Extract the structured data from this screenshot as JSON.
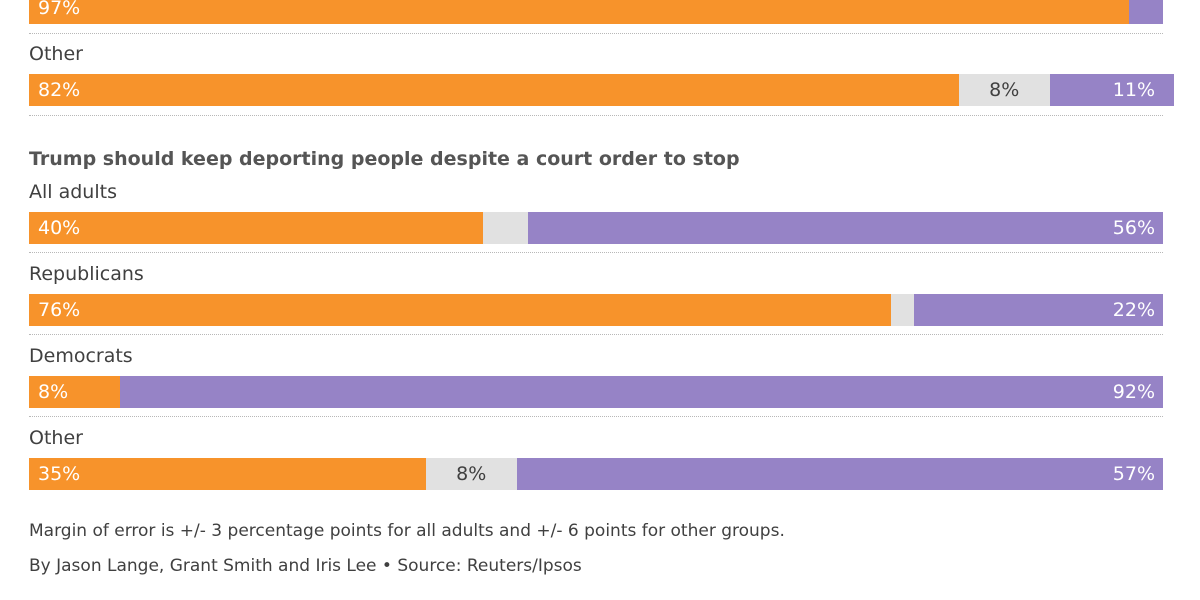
{
  "colors": {
    "yes": "#f7932b",
    "unsure": "#e1e1e1",
    "no": "#9683c6"
  },
  "chart_data": [
    {
      "type": "bar",
      "orientation": "horizontal",
      "stacked": "100%",
      "title": "",
      "categories": [
        "",
        "Other"
      ],
      "series": [
        {
          "values": [
            97,
            82
          ]
        },
        {
          "values": [
            null,
            8
          ]
        },
        {
          "values": [
            null,
            11
          ]
        }
      ],
      "labels": [
        [
          "97%",
          "",
          ""
        ],
        [
          "82%",
          "8%",
          "11%"
        ]
      ]
    },
    {
      "type": "bar",
      "orientation": "horizontal",
      "stacked": "100%",
      "title": "Trump should keep deporting people despite a court order to stop",
      "categories": [
        "All adults",
        "Republicans",
        "Democrats",
        "Other"
      ],
      "series": [
        {
          "values": [
            40,
            76,
            8,
            35
          ]
        },
        {
          "values": [
            4,
            2,
            0,
            8
          ]
        },
        {
          "values": [
            56,
            22,
            92,
            57
          ]
        }
      ],
      "labels": [
        [
          "40%",
          "",
          "56%"
        ],
        [
          "76%",
          "",
          "22%"
        ],
        [
          "8%",
          "",
          "92%"
        ],
        [
          "35%",
          "8%",
          "57%"
        ]
      ]
    }
  ],
  "footer": {
    "note": "Margin of error is +/- 3 percentage points for all adults and +/- 6 points for other groups.",
    "credit": "By Jason Lange, Grant Smith and Iris Lee • Source: Reuters/Ipsos"
  }
}
